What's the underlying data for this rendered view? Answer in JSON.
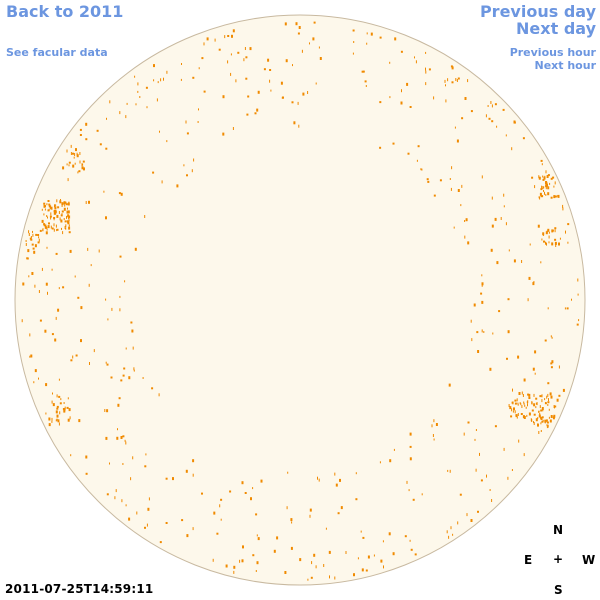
{
  "nav": {
    "back_label": "Back to 2011",
    "facular_label": "See facular data",
    "prev_day_label": "Previous day",
    "next_day_label": "Next day",
    "prev_hour_label": "Previous hour",
    "next_hour_label": "Next hour"
  },
  "compass": {
    "north": "N",
    "east": "E",
    "center": "+",
    "west": "W",
    "south": "S"
  },
  "timestamp": "2011-07-25T14:59:11",
  "colors": {
    "disk_fill": "#fdf8eb",
    "disk_stroke": "#c8b9a0",
    "facula": "#f08a00",
    "link": "#6c96e0"
  }
}
